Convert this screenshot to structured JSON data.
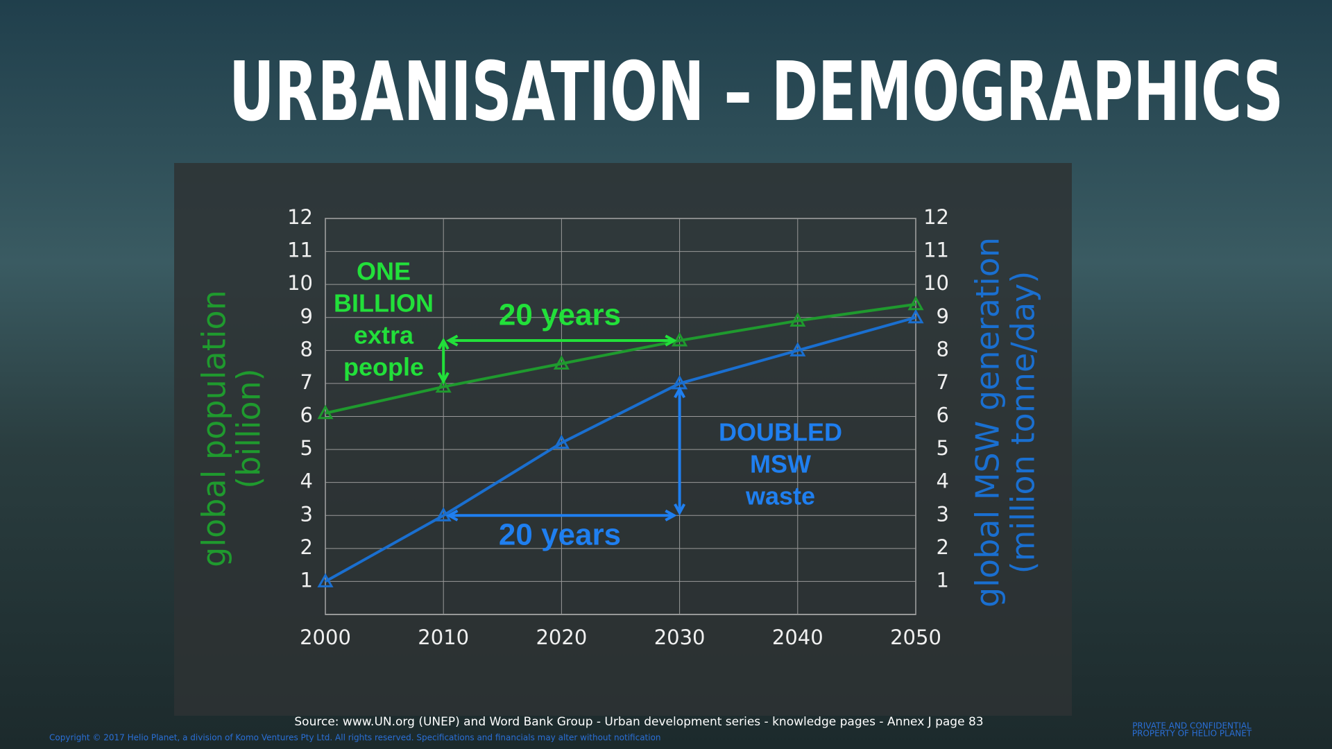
{
  "chart_data": {
    "type": "line",
    "title": "URBANISATION – DEMOGRAPHICS",
    "x": [
      2000,
      2010,
      2020,
      2030,
      2040,
      2050
    ],
    "xlim": [
      2000,
      2050
    ],
    "xticks": [
      2000,
      2010,
      2020,
      2030,
      2040,
      2050
    ],
    "ylim": [
      0,
      12
    ],
    "yticks": [
      1,
      2,
      3,
      4,
      5,
      6,
      7,
      8,
      9,
      10,
      11,
      12
    ],
    "y2lim": [
      0,
      12
    ],
    "y2ticks": [
      1,
      2,
      3,
      4,
      5,
      6,
      7,
      8,
      9,
      10,
      11,
      12
    ],
    "ylabel": [
      "global population",
      "(billion)"
    ],
    "y2label": [
      "global MSW generation",
      "(million tonne/day)"
    ],
    "grid": true,
    "series": [
      {
        "name": "global population",
        "color": "#1f9a2e",
        "values": [
          6.1,
          6.9,
          7.6,
          8.3,
          8.9,
          9.4
        ]
      },
      {
        "name": "global MSW generation",
        "color": "#1a6fd0",
        "axis": "y2",
        "values": [
          1,
          3,
          5.2,
          7,
          8,
          9
        ]
      }
    ],
    "annotations": [
      {
        "text": [
          "ONE",
          "BILLION",
          "extra",
          "people"
        ],
        "color": "#22e03a"
      },
      {
        "text": [
          "20 years"
        ],
        "color": "#22e03a"
      },
      {
        "text": [
          "DOUBLED",
          "MSW",
          "waste"
        ],
        "color": "#1f7ff0"
      },
      {
        "text": [
          "20 years"
        ],
        "color": "#1f7ff0"
      }
    ],
    "source": "Source: www.UN.org (UNEP) and Word Bank Group - Urban development series - knowledge pages - Annex J page 83",
    "copyright": "Copyright © 2017 Helio Planet, a division of Komo Ventures Pty Ltd. All rights reserved.   Specifications and financials may alter without notification",
    "confidential": [
      "PRIVATE AND CONFIDENTIAL",
      "PROPERTY OF HELIO PLANET"
    ]
  }
}
